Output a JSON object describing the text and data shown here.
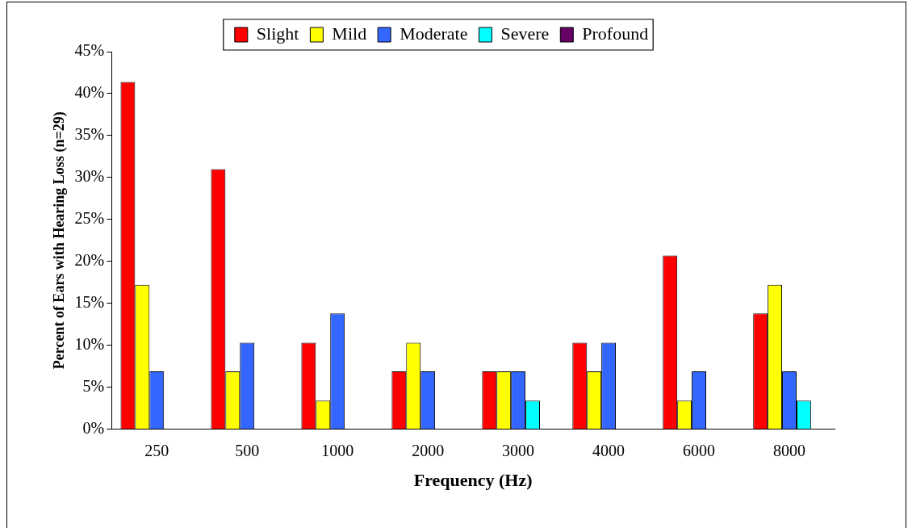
{
  "chart_data": {
    "type": "bar",
    "xlabel": "Frequency (Hz)",
    "ylabel": "Percent of Ears with Hearing Loss (n=29)",
    "categories": [
      "250",
      "500",
      "1000",
      "2000",
      "3000",
      "4000",
      "6000",
      "8000"
    ],
    "series": [
      {
        "name": "Slight",
        "color": "#ff0000",
        "values": [
          41.4,
          31.0,
          10.3,
          6.9,
          6.9,
          10.3,
          20.7,
          13.8
        ]
      },
      {
        "name": "Mild",
        "color": "#ffff00",
        "values": [
          17.2,
          6.9,
          3.4,
          10.3,
          6.9,
          6.9,
          3.4,
          17.2
        ]
      },
      {
        "name": "Moderate",
        "color": "#3366ff",
        "values": [
          6.9,
          10.3,
          13.8,
          6.9,
          6.9,
          10.3,
          6.9,
          6.9
        ]
      },
      {
        "name": "Severe",
        "color": "#00ffff",
        "values": [
          0,
          0,
          0,
          0,
          3.4,
          0,
          0,
          3.4
        ]
      },
      {
        "name": "Profound",
        "color": "#660066",
        "values": [
          0,
          0,
          0,
          0,
          0,
          0,
          0,
          0
        ]
      }
    ],
    "ylim": [
      0,
      45
    ],
    "yticks": [
      {
        "value": 0,
        "label": "0%"
      },
      {
        "value": 5,
        "label": "5%"
      },
      {
        "value": 10,
        "label": "10%"
      },
      {
        "value": 15,
        "label": "15%"
      },
      {
        "value": 20,
        "label": "20%"
      },
      {
        "value": 25,
        "label": "25%"
      },
      {
        "value": 30,
        "label": "30%"
      },
      {
        "value": 35,
        "label": "35%"
      },
      {
        "value": 40,
        "label": "40%"
      },
      {
        "value": 45,
        "label": "45%"
      }
    ],
    "grid": false,
    "legend": "top"
  }
}
